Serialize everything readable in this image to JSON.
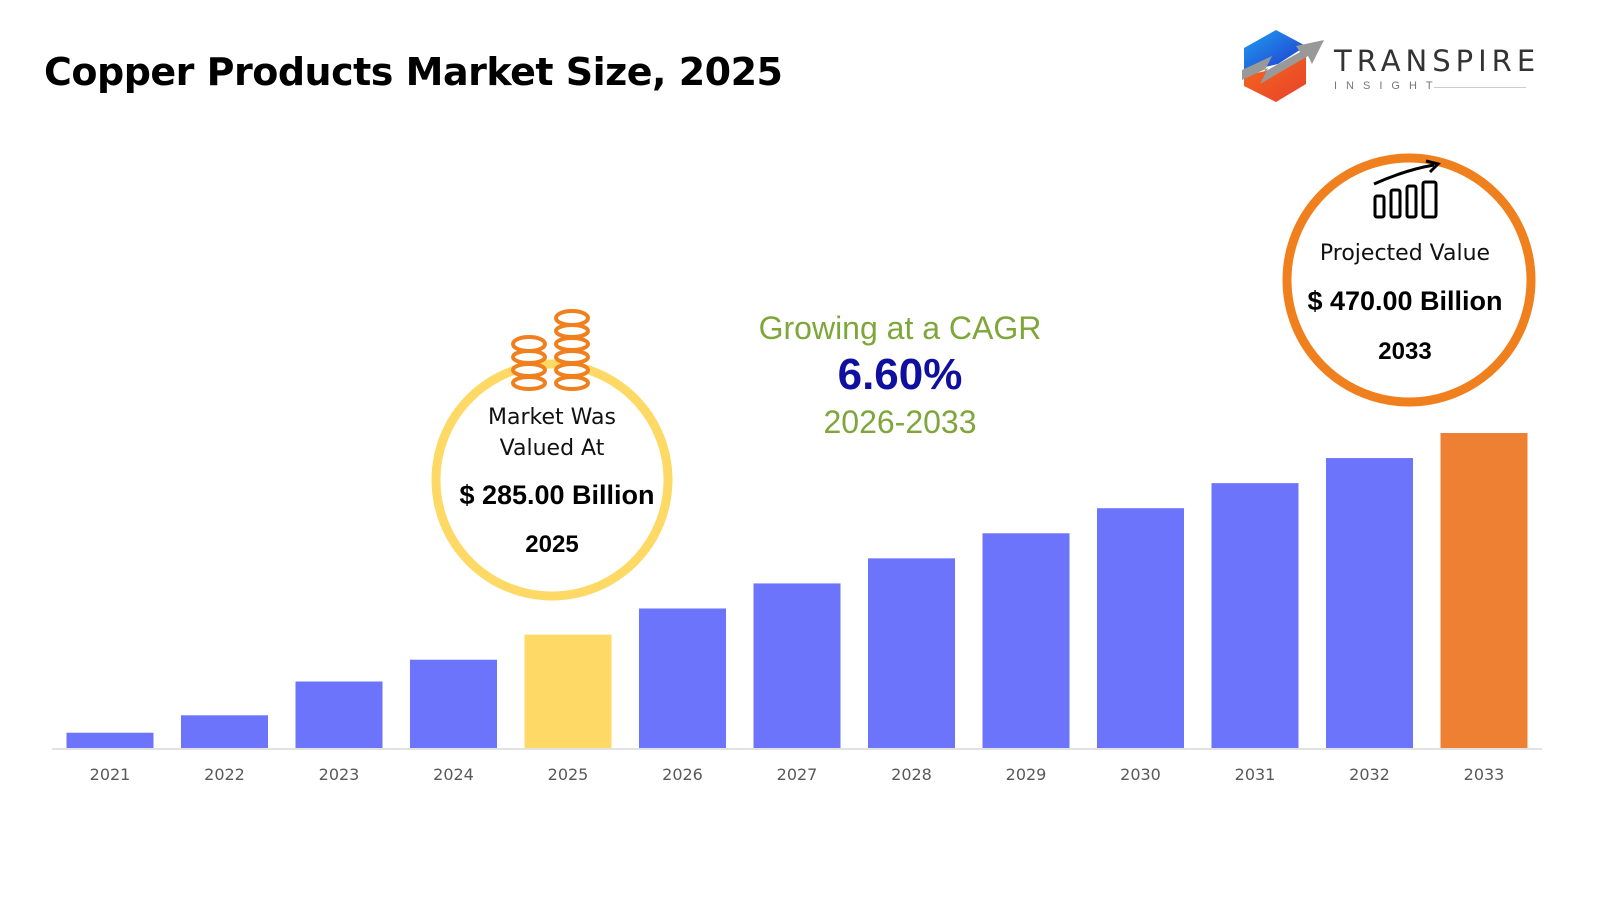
{
  "header": {
    "title": "Copper Products Market Size, 2025"
  },
  "logo": {
    "name": "TRANSPIRE",
    "sub": "INSIGHT"
  },
  "callout_2025": {
    "label_line1": "Market Was",
    "label_line2": "Valued At",
    "value": "$ 285.00 Billion",
    "year": "2025",
    "ring_color": "#FFD966",
    "icon": "coin-stacks-icon"
  },
  "cagr": {
    "label": "Growing at a CAGR",
    "value": "6.60%",
    "period": "2026-2033",
    "label_color": "#7FA63A",
    "value_color": "#1010A0"
  },
  "callout_2033": {
    "label": "Projected Value",
    "value": "$ 470.00 Billion",
    "year": "2033",
    "ring_color": "#F07F1E",
    "icon": "growth-bar-chart-icon"
  },
  "chart_data": {
    "type": "bar",
    "title": "Copper Products Market Size, 2025",
    "xlabel": "",
    "ylabel": "",
    "categories": [
      "2021",
      "2022",
      "2023",
      "2024",
      "2025",
      "2026",
      "2027",
      "2028",
      "2029",
      "2030",
      "2031",
      "2032",
      "2033"
    ],
    "values": [
      195,
      211,
      242,
      262,
      285,
      309,
      332,
      355,
      378,
      401,
      424,
      447,
      470
    ],
    "unit": "USD Billion",
    "ylim": [
      181,
      470
    ],
    "grid": false,
    "colors": {
      "default": "#6B74FB",
      "highlight_2025": "#FFD966",
      "highlight_2033": "#EE8033"
    }
  }
}
